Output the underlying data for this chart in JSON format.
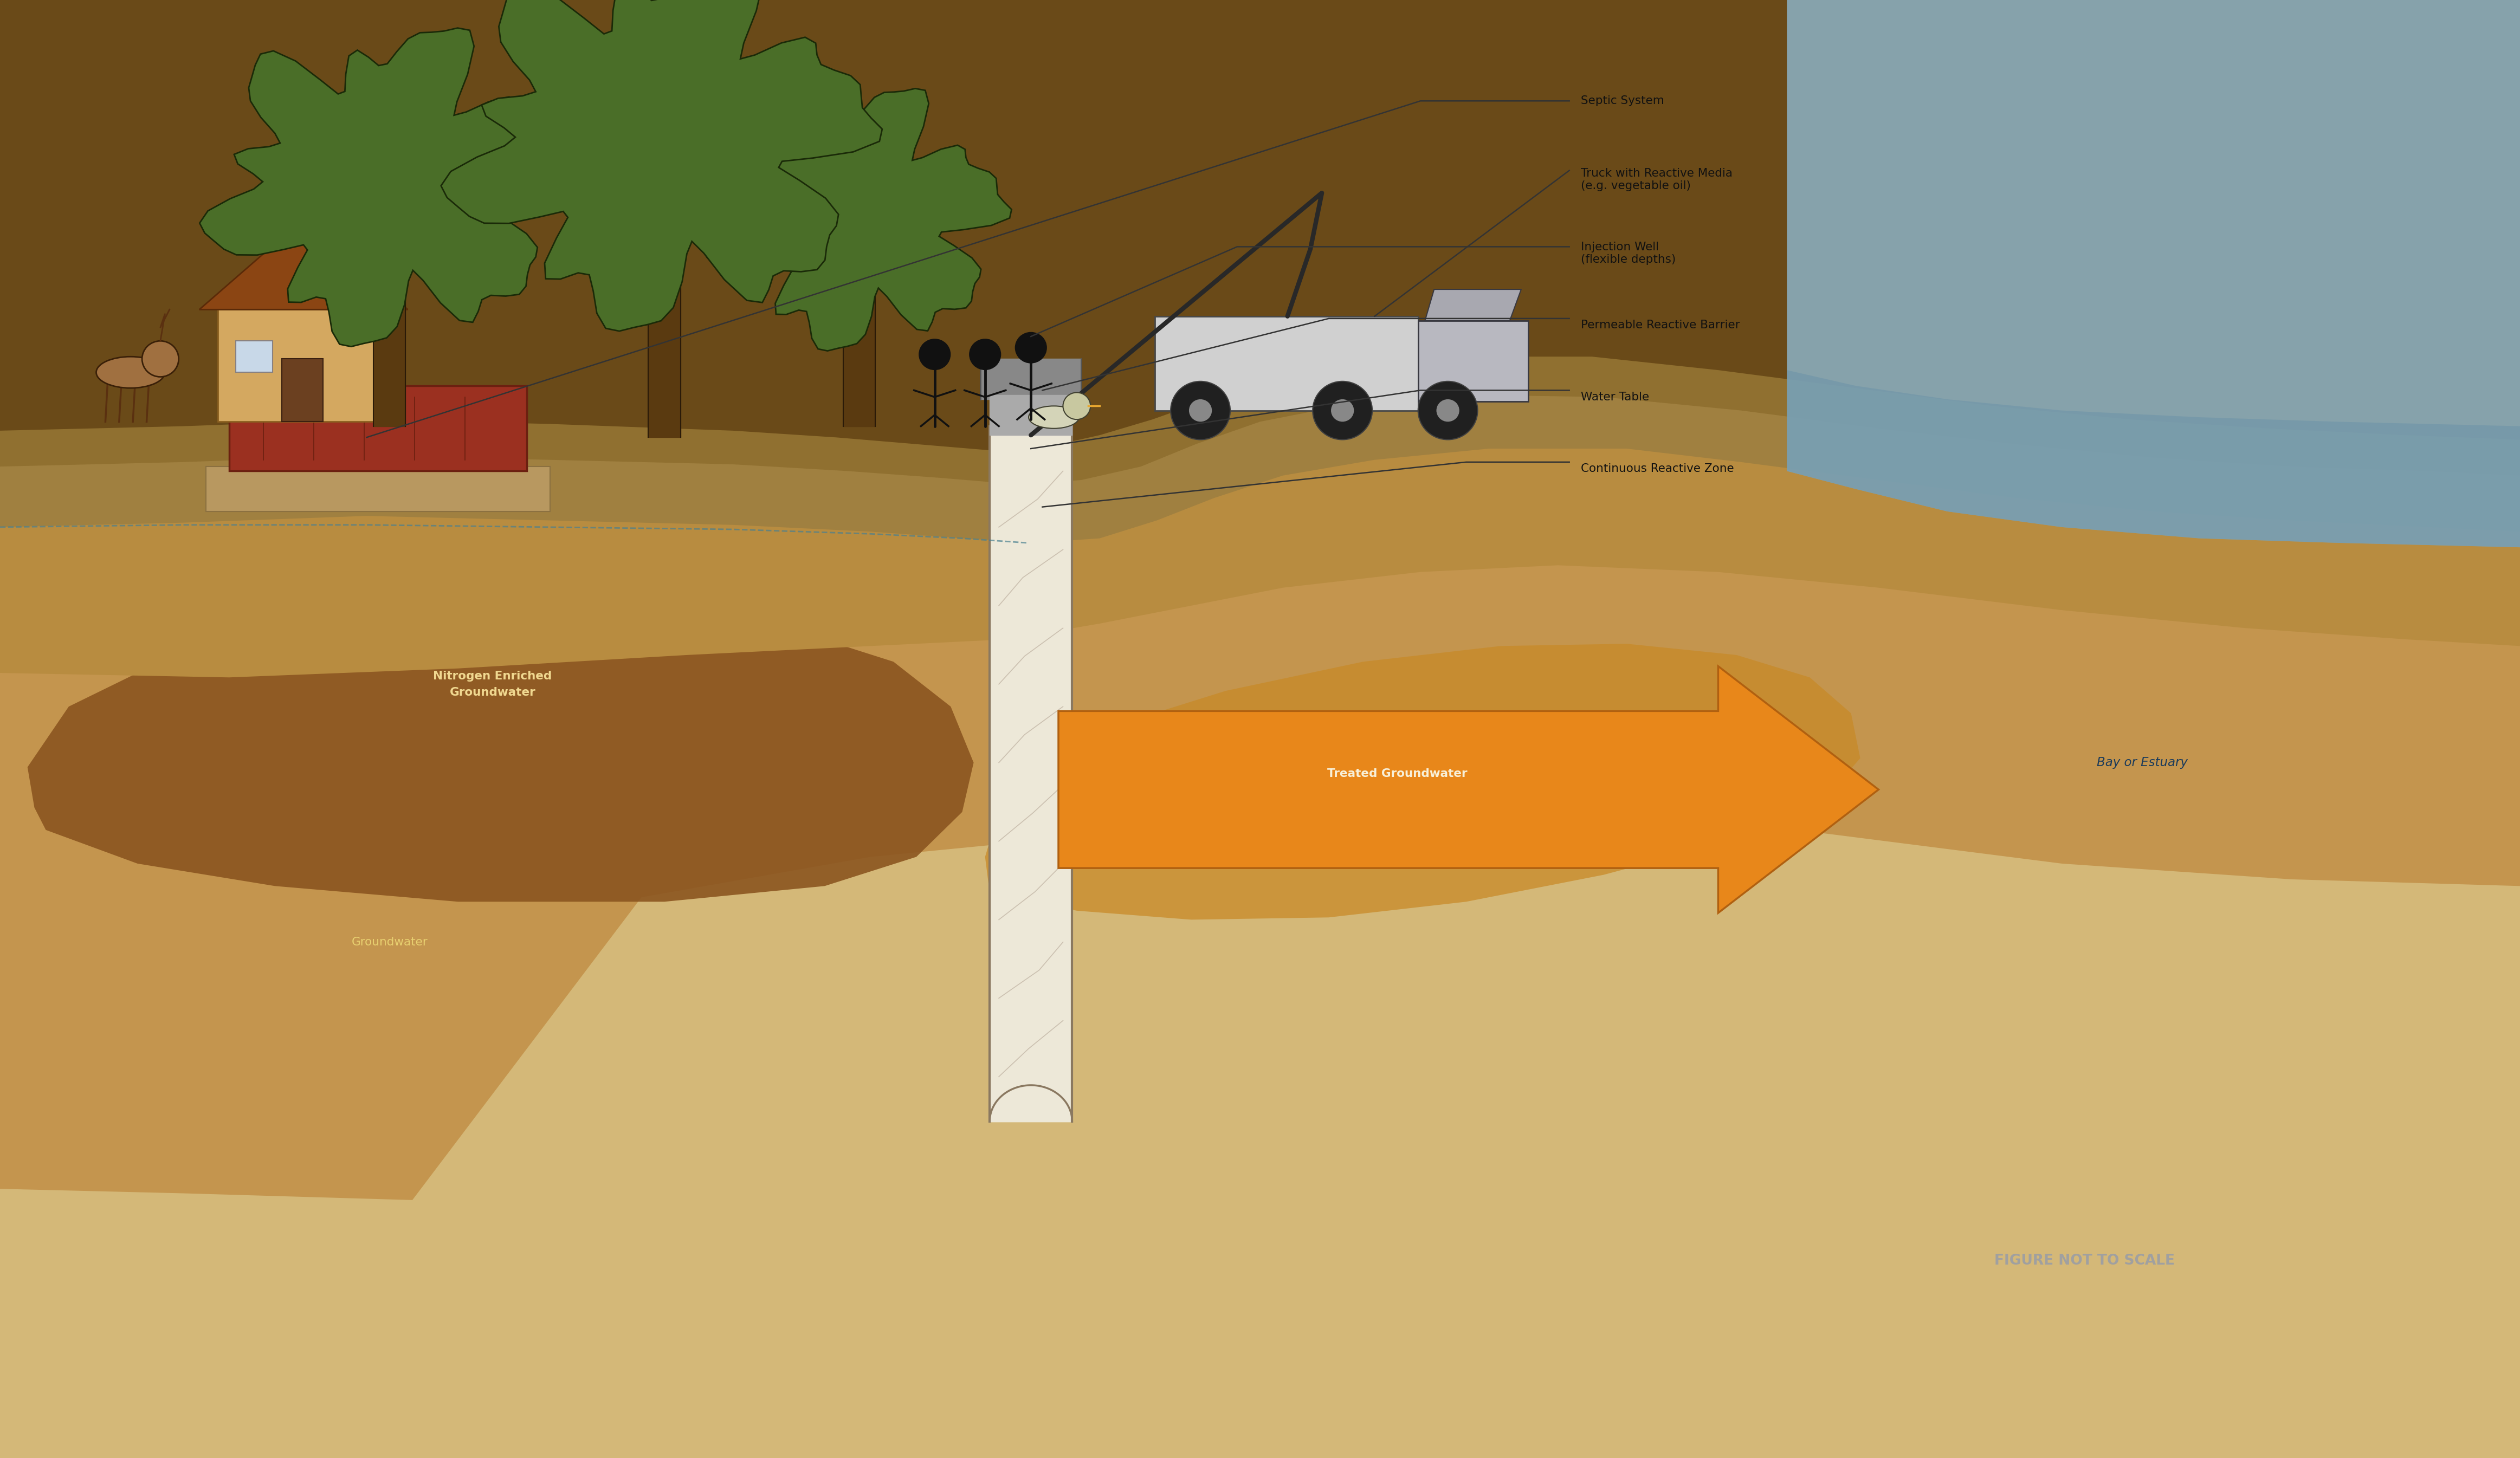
{
  "bg": "#ffffff",
  "fig_width": 46.5,
  "fig_height": 26.91,
  "labels": {
    "septic_system": "Septic System",
    "truck": "Truck with Reactive Media\n(e.g. vegetable oil)",
    "injection_well": "Injection Well\n(flexible depths)",
    "permeable_barrier": "Permeable Reactive Barrier",
    "water_table": "Water Table",
    "continuous_zone": "Continuous Reactive Zone",
    "nitrogen_enriched": "Nitrogen Enriched\nGroundwater",
    "treated_groundwater": "Treated Groundwater",
    "groundwater": "Groundwater",
    "bay_estuary": "Bay or Estuary",
    "figure_note": "FIGURE NOT TO SCALE"
  },
  "colors": {
    "sky": "#ffffff",
    "sandy_bottom": "#d4b878",
    "sandy_mid": "#c4954e",
    "sandy_upper": "#b88c40",
    "sandy_surface": "#a08040",
    "surface_dark": "#6a4a18",
    "nitrogen_brown": "#8b5520",
    "treated_orange": "#c88a28",
    "bay_blue": "#8aafc0",
    "bay_dark": "#6a92a8",
    "tree_green": "#4a6e28",
    "tree_outline": "#1a2a08",
    "tree_trunk": "#5a3a10",
    "house_wall": "#d4a860",
    "house_roof": "#8b4513",
    "house_door": "#6b4020",
    "house_win": "#c8d8e8",
    "septic_red": "#9b3020",
    "septic_dark": "#6b2010",
    "truck_light": "#d0d0d0",
    "truck_dark": "#484848",
    "truck_cab": "#b8b8c0",
    "wheel_dark": "#202020",
    "person_dark": "#111111",
    "deer_brown": "#a07040",
    "duck_tan": "#d4d4b8",
    "arrow_orange": "#e8871a",
    "arrow_outline": "#b06010",
    "well_cream": "#ede8d8",
    "well_line": "#8a7860",
    "well_crack": "#b0a090",
    "pipe_gray": "#888888",
    "label_line": "#333333",
    "label_text": "#111111",
    "wt_blue": "#4a8090",
    "figure_note_color": "#a0a0a0",
    "nitrogen_text": "#f0d890",
    "treated_text": "#f8f0d8",
    "groundwater_text": "#e8d070",
    "bay_text": "#1a3a5a"
  }
}
